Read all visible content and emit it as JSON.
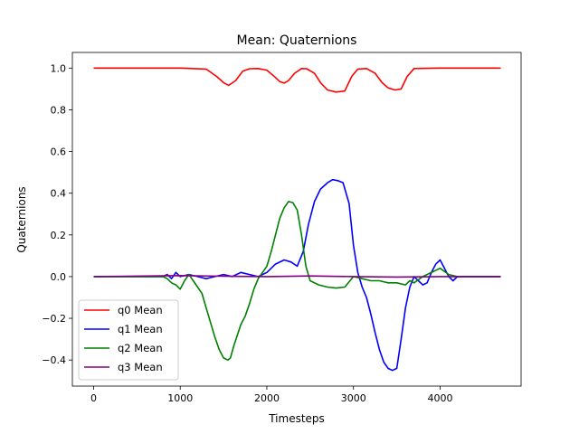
{
  "chart_data": {
    "type": "line",
    "title": "Mean: Quaternions",
    "xlabel": "Timesteps",
    "ylabel": "Quaternions",
    "xlim": [
      -245,
      4935
    ],
    "ylim": [
      -0.525,
      1.075
    ],
    "xticks": [
      0,
      1000,
      2000,
      3000,
      4000
    ],
    "yticks": [
      -0.4,
      -0.2,
      0.0,
      0.2,
      0.4,
      0.6,
      0.8,
      1.0
    ],
    "xtick_labels": [
      "0",
      "1000",
      "2000",
      "3000",
      "4000"
    ],
    "ytick_labels": [
      "−0.4",
      "−0.2",
      "0.0",
      "0.2",
      "0.4",
      "0.6",
      "0.8",
      "1.0"
    ],
    "grid": false,
    "legend": "lower-left",
    "series": [
      {
        "name": "q0 Mean",
        "color": "#ff0000",
        "x": [
          0,
          1000,
          1300,
          1420,
          1500,
          1560,
          1640,
          1720,
          1800,
          1900,
          2000,
          2100,
          2150,
          2200,
          2250,
          2320,
          2400,
          2460,
          2550,
          2620,
          2700,
          2800,
          2900,
          2980,
          3050,
          3150,
          3250,
          3330,
          3400,
          3480,
          3550,
          3620,
          3700,
          4000,
          4700
        ],
        "y": [
          1.0,
          1.0,
          0.995,
          0.96,
          0.93,
          0.917,
          0.94,
          0.985,
          0.997,
          0.998,
          0.99,
          0.955,
          0.935,
          0.928,
          0.94,
          0.975,
          0.998,
          0.997,
          0.975,
          0.93,
          0.895,
          0.885,
          0.89,
          0.96,
          0.995,
          0.998,
          0.975,
          0.93,
          0.905,
          0.895,
          0.9,
          0.96,
          0.998,
          1.0,
          1.0
        ]
      },
      {
        "name": "q1 Mean",
        "color": "#0000ff",
        "x": [
          0,
          800,
          850,
          900,
          950,
          1000,
          1100,
          1200,
          1300,
          1400,
          1500,
          1600,
          1700,
          1800,
          1900,
          2000,
          2100,
          2200,
          2280,
          2350,
          2420,
          2480,
          2550,
          2620,
          2700,
          2760,
          2820,
          2880,
          2950,
          3000,
          3050,
          3100,
          3150,
          3200,
          3250,
          3300,
          3350,
          3400,
          3450,
          3500,
          3550,
          3600,
          3650,
          3700,
          3750,
          3800,
          3850,
          3900,
          3950,
          4000,
          4050,
          4100,
          4150,
          4200,
          4700
        ],
        "y": [
          0.0,
          0.0,
          0.01,
          -0.01,
          0.02,
          0.0,
          0.01,
          0.0,
          -0.01,
          0.0,
          0.01,
          0.0,
          0.02,
          0.01,
          0.0,
          0.02,
          0.06,
          0.08,
          0.07,
          0.05,
          0.12,
          0.25,
          0.36,
          0.42,
          0.45,
          0.465,
          0.46,
          0.45,
          0.35,
          0.15,
          0.02,
          -0.05,
          -0.1,
          -0.18,
          -0.27,
          -0.35,
          -0.41,
          -0.44,
          -0.45,
          -0.44,
          -0.3,
          -0.15,
          -0.05,
          0.0,
          -0.02,
          -0.04,
          -0.03,
          0.02,
          0.06,
          0.08,
          0.04,
          0.0,
          -0.02,
          0.0,
          0.0
        ]
      },
      {
        "name": "q2 Mean",
        "color": "#008000",
        "x": [
          0,
          800,
          850,
          900,
          950,
          1000,
          1050,
          1100,
          1150,
          1200,
          1250,
          1300,
          1350,
          1400,
          1450,
          1500,
          1550,
          1580,
          1620,
          1660,
          1700,
          1750,
          1800,
          1850,
          1900,
          1950,
          2000,
          2050,
          2100,
          2150,
          2200,
          2250,
          2300,
          2350,
          2400,
          2450,
          2500,
          2600,
          2700,
          2800,
          2900,
          3000,
          3100,
          3200,
          3300,
          3400,
          3500,
          3600,
          3650,
          3700,
          3800,
          3900,
          4000,
          4100,
          4200,
          4700
        ],
        "y": [
          0.0,
          0.0,
          -0.01,
          -0.03,
          -0.04,
          -0.06,
          -0.02,
          0.01,
          -0.02,
          -0.05,
          -0.08,
          -0.15,
          -0.22,
          -0.29,
          -0.35,
          -0.39,
          -0.4,
          -0.39,
          -0.33,
          -0.28,
          -0.23,
          -0.19,
          -0.13,
          -0.06,
          -0.01,
          0.02,
          0.05,
          0.12,
          0.2,
          0.28,
          0.33,
          0.36,
          0.355,
          0.32,
          0.2,
          0.05,
          -0.02,
          -0.04,
          -0.05,
          -0.055,
          -0.05,
          0.0,
          -0.01,
          -0.02,
          -0.02,
          -0.03,
          -0.03,
          -0.04,
          -0.02,
          -0.03,
          0.0,
          0.02,
          0.04,
          0.01,
          0.0,
          0.0
        ]
      },
      {
        "name": "q3 Mean",
        "color": "#800080",
        "x": [
          0,
          1000,
          1500,
          2000,
          2500,
          3000,
          3500,
          4000,
          4700
        ],
        "y": [
          0.0,
          0.005,
          0.002,
          0.0,
          0.003,
          0.0,
          -0.002,
          0.0,
          0.0
        ]
      }
    ]
  }
}
